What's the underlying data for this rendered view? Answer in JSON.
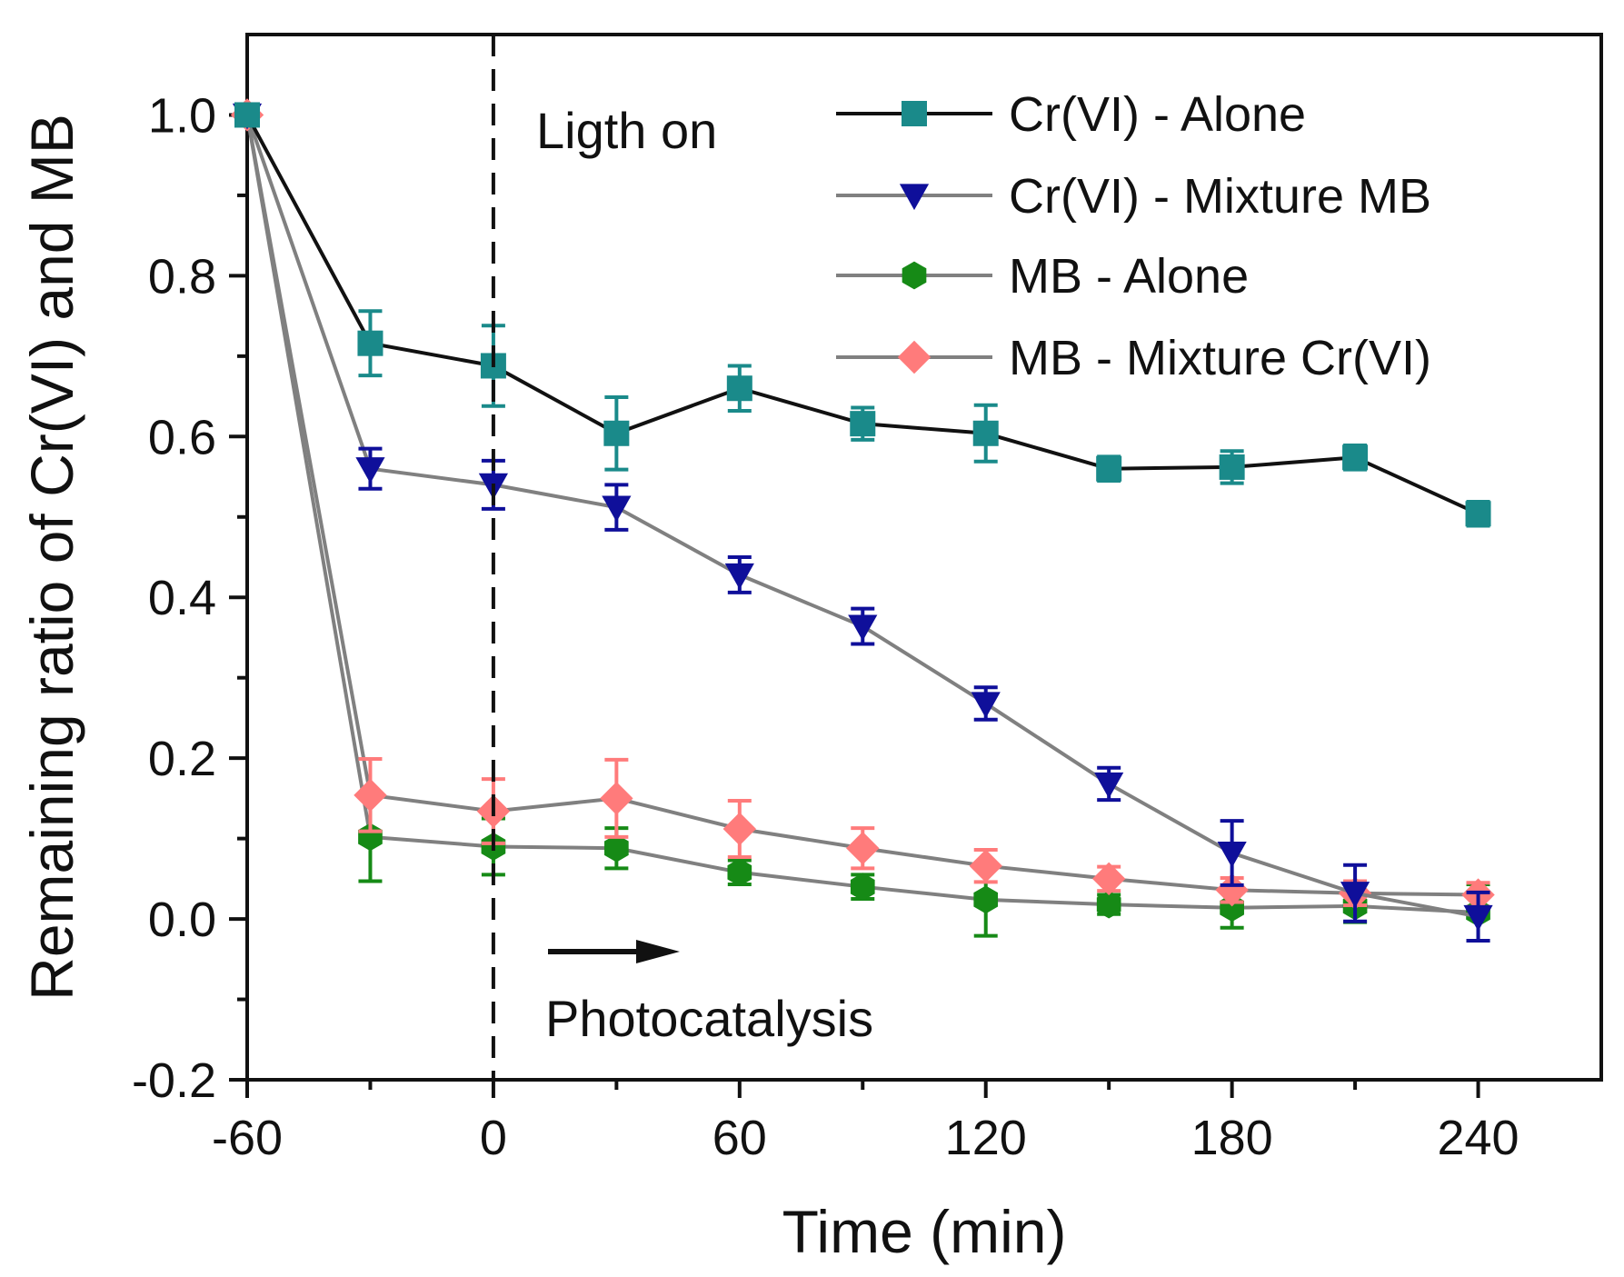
{
  "chart_data": {
    "type": "line",
    "title": "",
    "xlabel": "Time (min)",
    "ylabel": "Remaining ratio of Cr(VI) and MB",
    "xlim": [
      -60,
      270
    ],
    "ylim": [
      -0.2,
      1.1
    ],
    "xticks": [
      -60,
      0,
      60,
      120,
      180,
      240
    ],
    "xtick_labels": [
      "-60",
      "0",
      "60",
      "120",
      "180",
      "240"
    ],
    "yticks": [
      -0.2,
      0.0,
      0.2,
      0.4,
      0.6,
      0.8,
      1.0
    ],
    "ytick_labels": [
      "-0.2",
      "0.0",
      "0.2",
      "0.4",
      "0.6",
      "0.8",
      "1.0"
    ],
    "grid": false,
    "legend_position": "top-right",
    "x": [
      -60,
      -30,
      0,
      30,
      60,
      90,
      120,
      150,
      180,
      210,
      240
    ],
    "series": [
      {
        "name": "Cr(VI) - Alone",
        "marker": "square",
        "color": "#1a8a8a",
        "line_color": "#111111",
        "values": [
          1.0,
          0.716,
          0.688,
          0.604,
          0.66,
          0.616,
          0.604,
          0.56,
          0.562,
          0.574,
          0.504
        ],
        "errors": [
          0.0,
          0.04,
          0.05,
          0.045,
          0.028,
          0.02,
          0.035,
          0.015,
          0.02,
          0.015,
          0.015
        ]
      },
      {
        "name": "Cr(VI) - Mixture MB",
        "marker": "triangle-down",
        "color": "#0f0f9a",
        "line_color": "#808080",
        "values": [
          1.0,
          0.56,
          0.54,
          0.512,
          0.428,
          0.364,
          0.268,
          0.168,
          0.082,
          0.032,
          0.003
        ],
        "errors": [
          0.0,
          0.025,
          0.03,
          0.028,
          0.022,
          0.022,
          0.02,
          0.02,
          0.04,
          0.035,
          0.03
        ]
      },
      {
        "name": "MB - Alone",
        "marker": "hexagon",
        "color": "#168a16",
        "line_color": "#808080",
        "values": [
          1.0,
          0.102,
          0.09,
          0.088,
          0.058,
          0.04,
          0.024,
          0.018,
          0.014,
          0.016,
          0.008
        ],
        "errors": [
          0.0,
          0.055,
          0.035,
          0.025,
          0.015,
          0.015,
          0.045,
          0.012,
          0.025,
          0.02,
          0.035
        ]
      },
      {
        "name": "MB - Mixture Cr(VI)",
        "marker": "diamond",
        "color": "#ff7b7b",
        "line_color": "#808080",
        "values": [
          1.0,
          0.154,
          0.134,
          0.15,
          0.112,
          0.088,
          0.066,
          0.05,
          0.036,
          0.032,
          0.03
        ],
        "errors": [
          0.0,
          0.045,
          0.04,
          0.048,
          0.035,
          0.025,
          0.02,
          0.015,
          0.015,
          0.015,
          0.015
        ]
      }
    ],
    "vline": {
      "x": 0,
      "style": "dashed"
    },
    "annotations": [
      {
        "text": "Ligth on"
      },
      {
        "text": "Photocatalysis"
      }
    ]
  }
}
